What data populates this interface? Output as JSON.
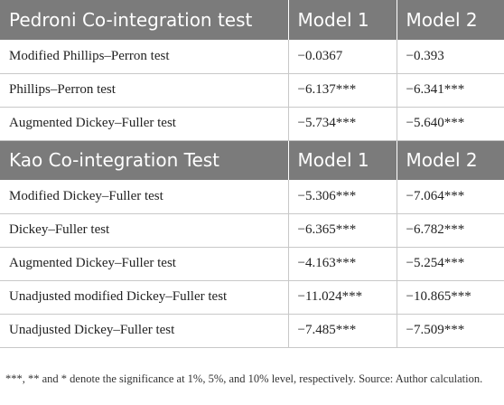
{
  "pedroni": {
    "header": {
      "title": "Pedroni Co-integration test",
      "model1": "Model 1",
      "model2": "Model 2"
    },
    "rows": [
      {
        "test": "Modified Phillips–Perron test",
        "m1": "−0.0367",
        "m2": "−0.393"
      },
      {
        "test": "Phillips–Perron test",
        "m1": "−6.137***",
        "m2": "−6.341***"
      },
      {
        "test": "Augmented Dickey–Fuller test",
        "m1": "−5.734***",
        "m2": "−5.640***"
      }
    ]
  },
  "kao": {
    "header": {
      "title": "Kao Co-integration Test",
      "model1": "Model 1",
      "model2": "Model 2"
    },
    "rows": [
      {
        "test": "Modified Dickey–Fuller test",
        "m1": "−5.306***",
        "m2": "−7.064***"
      },
      {
        "test": "Dickey–Fuller test",
        "m1": "−6.365***",
        "m2": "−6.782***"
      },
      {
        "test": "Augmented Dickey–Fuller test",
        "m1": "−4.163***",
        "m2": "−5.254***"
      },
      {
        "test": "Unadjusted modified Dickey–Fuller test",
        "m1": "−11.024***",
        "m2": "−10.865***"
      },
      {
        "test": "Unadjusted Dickey–Fuller test",
        "m1": "−7.485***",
        "m2": "−7.509***"
      }
    ]
  },
  "footnote": "***, ** and * denote the significance at 1%, 5%, and 10% level, respectively. Source: Author calculation."
}
